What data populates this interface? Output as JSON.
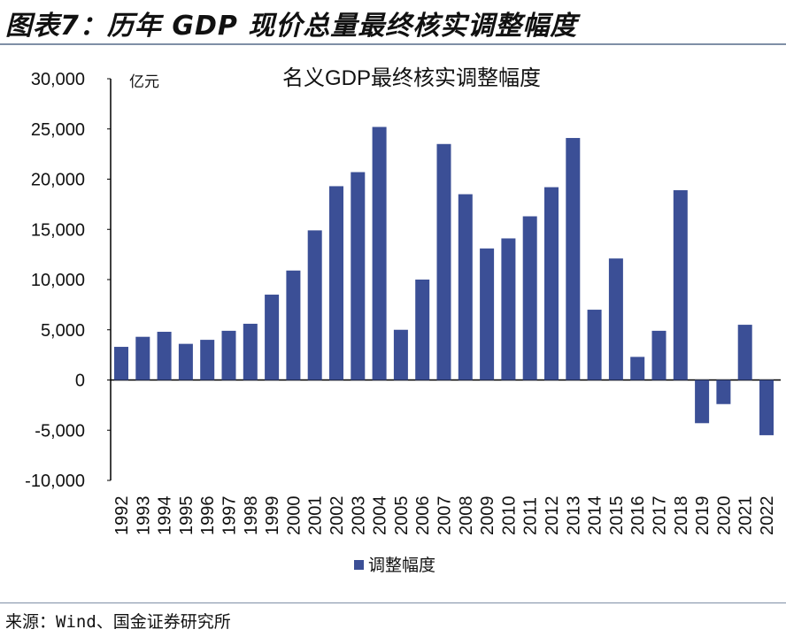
{
  "figure_title": "图表7：历年 GDP 现价总量最终核实调整幅度",
  "source": "来源：Wind、国金证券研究所",
  "chart_data": {
    "type": "bar",
    "title": "名义GDP最终核实调整幅度",
    "unit_label": "亿元",
    "xlabel": "",
    "ylabel": "",
    "ylim": [
      -10000,
      30000
    ],
    "yticks": [
      30000,
      25000,
      20000,
      15000,
      10000,
      5000,
      0,
      -5000,
      -10000
    ],
    "ytick_labels": [
      "30,000",
      "25,000",
      "20,000",
      "15,000",
      "10,000",
      "5,000",
      "0",
      "-5,000",
      "-10,000"
    ],
    "categories": [
      "1992",
      "1993",
      "1994",
      "1995",
      "1996",
      "1997",
      "1998",
      "1999",
      "2000",
      "2001",
      "2002",
      "2003",
      "2004",
      "2005",
      "2006",
      "2007",
      "2008",
      "2009",
      "2010",
      "2011",
      "2012",
      "2013",
      "2014",
      "2015",
      "2016",
      "2017",
      "2018",
      "2019",
      "2020",
      "2021",
      "2022"
    ],
    "series": [
      {
        "name": "调整幅度",
        "color": "#3b4f96",
        "values": [
          3300,
          4300,
          4800,
          3600,
          4000,
          4900,
          5600,
          8500,
          10900,
          14900,
          19300,
          20700,
          25200,
          5000,
          10000,
          23500,
          18500,
          13100,
          14100,
          16300,
          19200,
          24100,
          7000,
          12100,
          2300,
          4900,
          18900,
          -4300,
          -2400,
          5500,
          -5500
        ]
      }
    ],
    "grid": false,
    "legend": "bottom"
  }
}
